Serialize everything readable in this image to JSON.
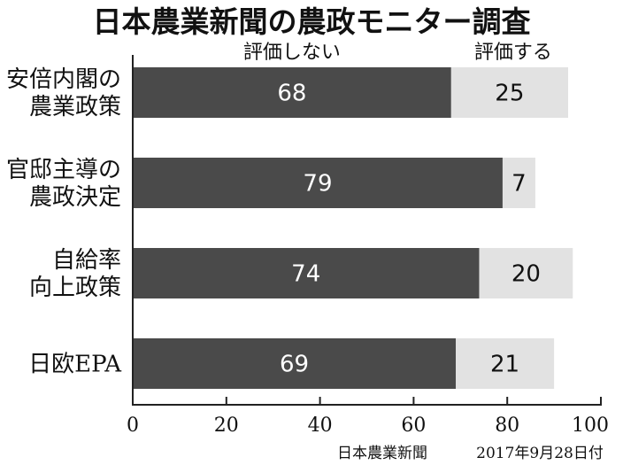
{
  "chart_data": {
    "type": "bar",
    "orientation": "horizontal",
    "stacked": true,
    "title": "日本農業新聞の農政モニター調査",
    "categories": [
      [
        "安倍内閣の",
        "農業政策"
      ],
      [
        "官邸主導の",
        "農政決定"
      ],
      [
        "自給率",
        "向上政策"
      ],
      [
        "日欧EPA"
      ]
    ],
    "series": [
      {
        "name": "評価しない",
        "values": [
          68,
          79,
          74,
          69
        ]
      },
      {
        "name": "評価する",
        "values": [
          25,
          7,
          20,
          21
        ]
      }
    ],
    "xlim": [
      0,
      100
    ],
    "xticks": [
      "0",
      "20",
      "40",
      "60",
      "80",
      "100"
    ],
    "grid": false,
    "legend_placement": "top",
    "colors": {
      "negative": "#4a4a4a",
      "positive": "#e2e2e2",
      "axis": "#222222"
    },
    "source": "日本農業新聞",
    "date": "2017年9月28日付"
  }
}
